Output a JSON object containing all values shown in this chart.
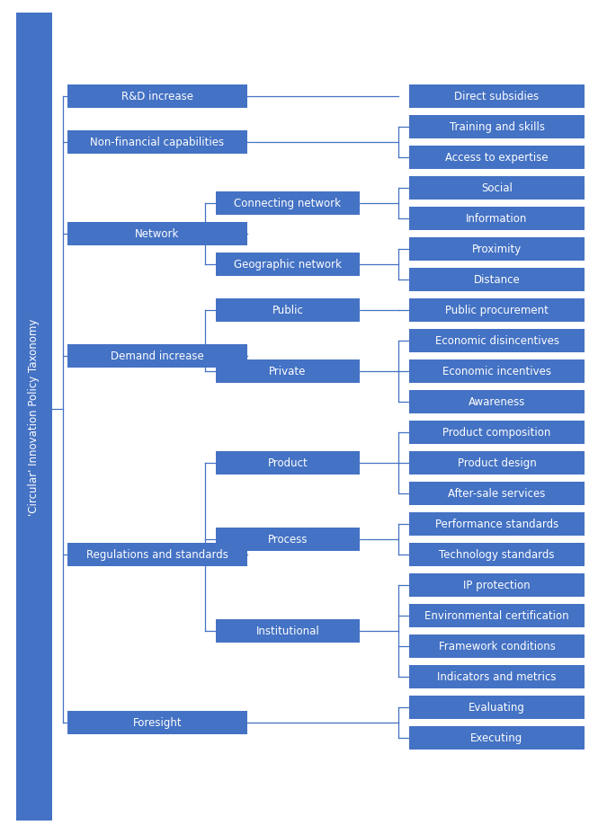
{
  "title_text": "'Circular' Innovation Policy Taxonomy",
  "box_color": "#4472C4",
  "text_color": "#FFFFFF",
  "line_color": "#4472C4",
  "bg_color": "#FFFFFF",
  "structure": [
    {
      "label": "R&D increase",
      "level": 1,
      "children": [
        {
          "label": "Direct subsidies",
          "level": 3
        }
      ]
    },
    {
      "label": "Non-financial capabilities",
      "level": 1,
      "children": [
        {
          "label": "Training and skills",
          "level": 3
        },
        {
          "label": "Access to expertise",
          "level": 3
        }
      ]
    },
    {
      "label": "Network",
      "level": 1,
      "children": [
        {
          "label": "Connecting network",
          "level": 2,
          "children": [
            {
              "label": "Social",
              "level": 3
            },
            {
              "label": "Information",
              "level": 3
            }
          ]
        },
        {
          "label": "Geographic network",
          "level": 2,
          "children": [
            {
              "label": "Proximity",
              "level": 3
            },
            {
              "label": "Distance",
              "level": 3
            }
          ]
        }
      ]
    },
    {
      "label": "Demand increase",
      "level": 1,
      "children": [
        {
          "label": "Public",
          "level": 2,
          "children": [
            {
              "label": "Public procurement",
              "level": 3
            }
          ]
        },
        {
          "label": "Private",
          "level": 2,
          "children": [
            {
              "label": "Economic disincentives",
              "level": 3
            },
            {
              "label": "Economic incentives",
              "level": 3
            },
            {
              "label": "Awareness",
              "level": 3
            }
          ]
        }
      ]
    },
    {
      "label": "Regulations and standards",
      "level": 1,
      "children": [
        {
          "label": "Product",
          "level": 2,
          "children": [
            {
              "label": "Product composition",
              "level": 3
            },
            {
              "label": "Product design",
              "level": 3
            },
            {
              "label": "After-sale services",
              "level": 3
            }
          ]
        },
        {
          "label": "Process",
          "level": 2,
          "children": [
            {
              "label": "Performance standards",
              "level": 3
            },
            {
              "label": "Technology standards",
              "level": 3
            }
          ]
        },
        {
          "label": "Institutional",
          "level": 2,
          "children": [
            {
              "label": "IP protection",
              "level": 3
            },
            {
              "label": "Environmental certification",
              "level": 3
            },
            {
              "label": "Framework conditions",
              "level": 3
            },
            {
              "label": "Indicators and metrics",
              "level": 3
            }
          ]
        }
      ]
    },
    {
      "label": "Foresight",
      "level": 1,
      "children": [
        {
          "label": "Evaluating",
          "level": 3
        },
        {
          "label": "Executing",
          "level": 3
        }
      ]
    }
  ]
}
